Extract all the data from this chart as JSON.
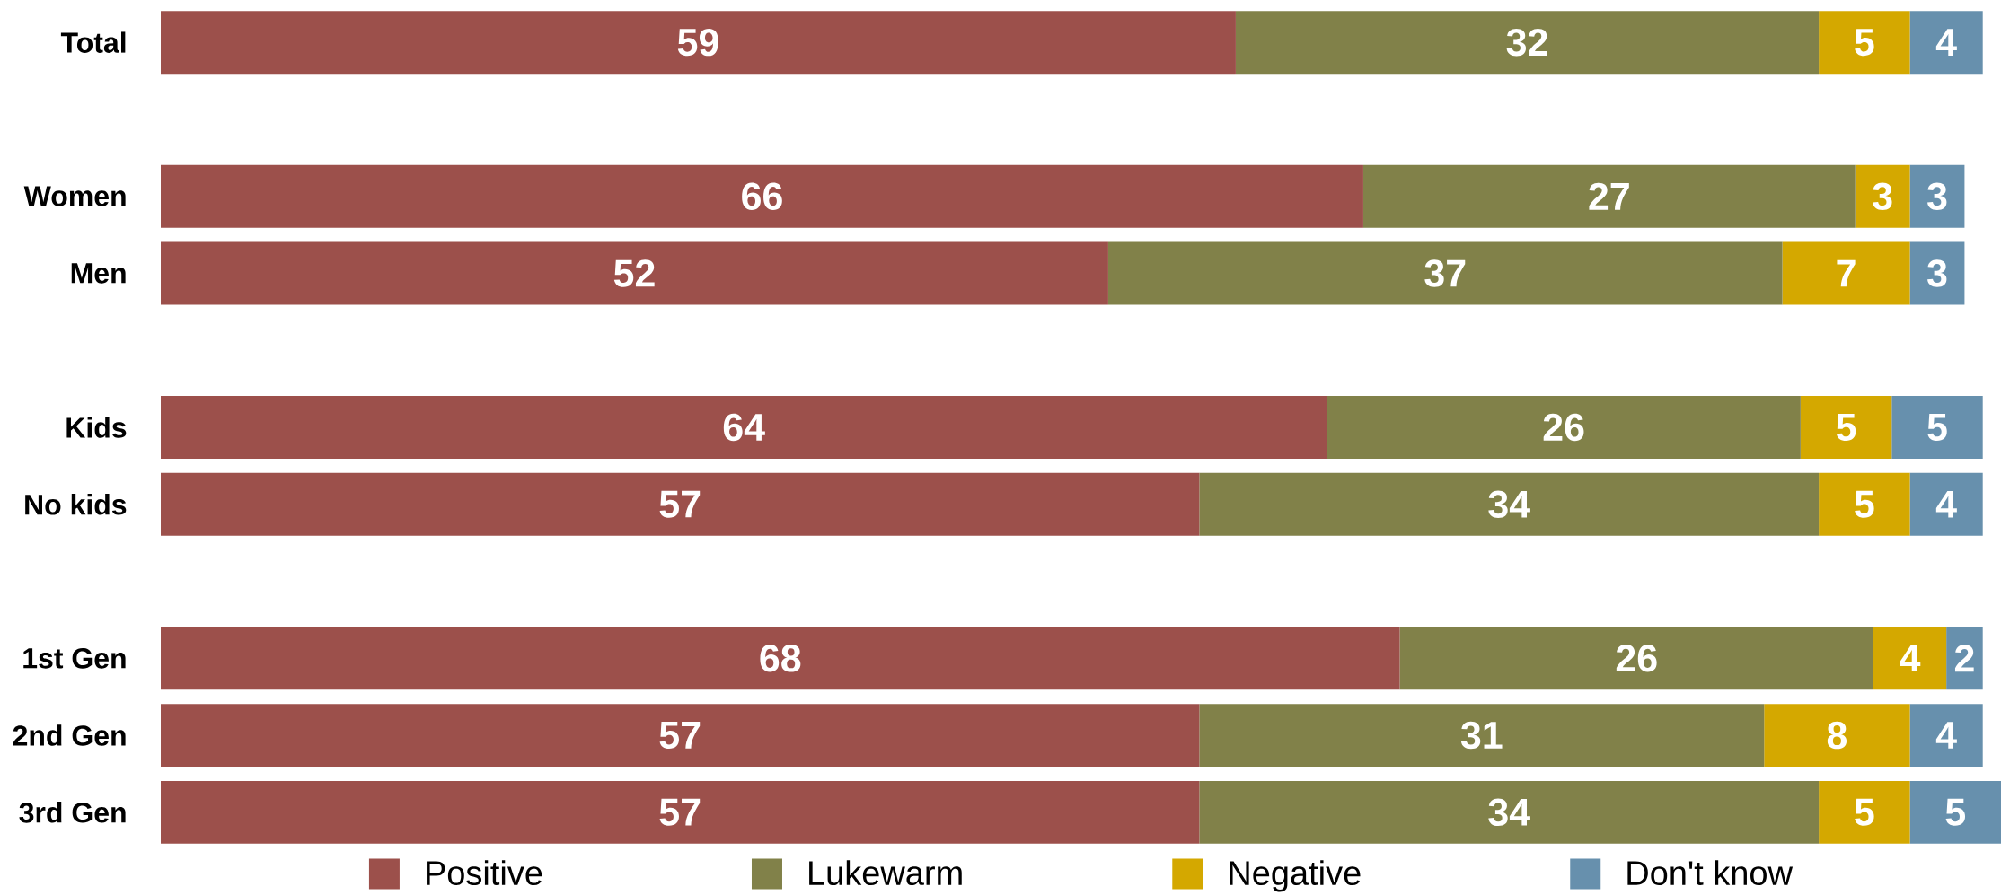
{
  "chart_data": {
    "type": "bar",
    "orientation": "horizontal",
    "stacked": true,
    "categories": [
      "Total",
      null,
      "Women",
      "Men",
      null,
      "Kids",
      "No kids",
      null,
      "1st Gen",
      "2nd Gen",
      "3rd Gen"
    ],
    "series": [
      {
        "name": "Positive",
        "color": "#9c504b",
        "values": [
          59,
          null,
          66,
          52,
          null,
          64,
          57,
          null,
          68,
          57,
          57
        ]
      },
      {
        "name": "Lukewarm",
        "color": "#818149",
        "values": [
          32,
          null,
          27,
          37,
          null,
          26,
          34,
          null,
          26,
          31,
          34
        ]
      },
      {
        "name": "Negative",
        "color": "#d4a800",
        "values": [
          5,
          null,
          3,
          7,
          null,
          5,
          5,
          null,
          4,
          8,
          5
        ]
      },
      {
        "name": "Don't know",
        "color": "#6790ad",
        "values": [
          4,
          null,
          3,
          3,
          null,
          5,
          4,
          null,
          2,
          4,
          5
        ]
      }
    ],
    "data_labels": true,
    "legend": "bottom",
    "tick_labels": "y"
  }
}
